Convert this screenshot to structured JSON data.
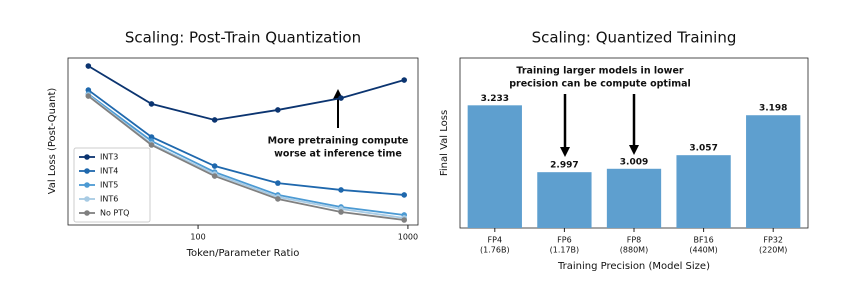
{
  "chart_data": [
    {
      "type": "line",
      "title": "Scaling: Post-Train Quantization",
      "x_label": "Token/Parameter Ratio",
      "y_label": "Val Loss (Post-Quant)",
      "x": [
        30,
        60,
        120,
        240,
        480,
        960
      ],
      "log_x": true,
      "xlim": [
        24,
        1117
      ],
      "xticks": [
        100,
        1000
      ],
      "ylim": [
        0,
        1
      ],
      "series": [
        {
          "name": "INT3",
          "color": "#0b3470",
          "values": [
            0.952,
            0.725,
            0.629,
            0.689,
            0.76,
            0.868
          ]
        },
        {
          "name": "INT4",
          "color": "#1f68ad",
          "values": [
            0.808,
            0.527,
            0.353,
            0.251,
            0.21,
            0.18
          ]
        },
        {
          "name": "INT5",
          "color": "#4c9ad3",
          "values": [
            0.784,
            0.503,
            0.317,
            0.18,
            0.108,
            0.06
          ]
        },
        {
          "name": "INT6",
          "color": "#a8cbe4",
          "values": [
            0.778,
            0.485,
            0.305,
            0.168,
            0.096,
            0.042
          ]
        },
        {
          "name": "No PTQ",
          "color": "#808080",
          "values": [
            0.772,
            0.479,
            0.293,
            0.156,
            0.078,
            0.03
          ]
        }
      ],
      "legend": "lower left",
      "annotation": [
        "More pretraining compute",
        "worse at inference time"
      ]
    },
    {
      "type": "bar",
      "title": "Scaling: Quantized Training",
      "x_label": "Training Precision (Model Size)",
      "y_label": "Final Val Loss",
      "categories": [
        "FP4",
        "FP6",
        "FP8",
        "BF16",
        "FP32"
      ],
      "sublabels": [
        "(1.76B)",
        "(1.17B)",
        "(880M)",
        "(440M)",
        "(220M)"
      ],
      "values": [
        3.233,
        2.997,
        3.009,
        3.057,
        3.198
      ],
      "color": "#5e9fcf",
      "ylim": [
        2.8,
        3.4
      ],
      "annotation": [
        "Training larger models in lower",
        "precision can be compute optimal"
      ]
    }
  ]
}
